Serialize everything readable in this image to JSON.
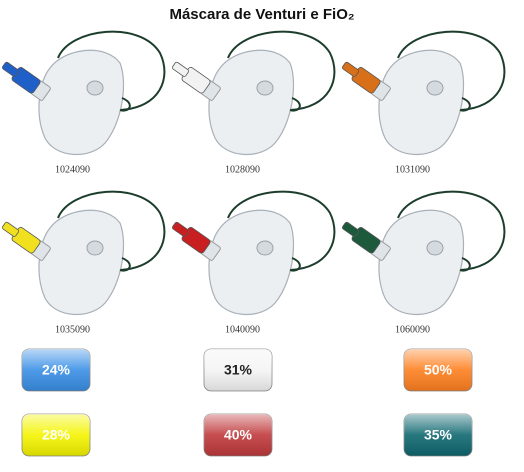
{
  "title": "Máscara de Venturi e FiO₂",
  "masks": [
    {
      "code": "1024090",
      "color": "#1f5fc8"
    },
    {
      "code": "1028090",
      "color": "#f2f2f2"
    },
    {
      "code": "1031090",
      "color": "#d8701a"
    },
    {
      "code": "1035090",
      "color": "#f0e020"
    },
    {
      "code": "1040090",
      "color": "#c82020"
    },
    {
      "code": "1060090",
      "color": "#1d5a3c"
    }
  ],
  "badges": [
    {
      "label": "24%",
      "color": "#3a8fe6"
    },
    {
      "label": "31%",
      "color": "#f4f4f4"
    },
    {
      "label": "50%",
      "color": "#ff8020"
    },
    {
      "label": "28%",
      "color": "#f4f400"
    },
    {
      "label": "40%",
      "color": "#c0393c"
    },
    {
      "label": "35%",
      "color": "#0f6870"
    }
  ]
}
